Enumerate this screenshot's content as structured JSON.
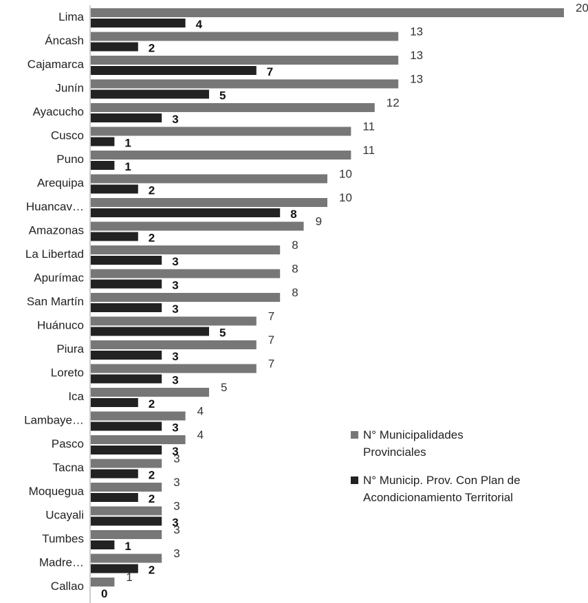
{
  "chart_data": {
    "type": "bar",
    "orientation": "horizontal",
    "categories": [
      "Lima",
      "Áncash",
      "Cajamarca",
      "Junín",
      "Ayacucho",
      "Cusco",
      "Puno",
      "Arequipa",
      "Huancav…",
      "Amazonas",
      "La Libertad",
      "Apurímac",
      "San Martín",
      "Huánuco",
      "Piura",
      "Loreto",
      "Ica",
      "Lambaye…",
      "Pasco",
      "Tacna",
      "Moquegua",
      "Ucayali",
      "Tumbes",
      "Madre…",
      "Callao"
    ],
    "series": [
      {
        "name": "N° Municipalidades Provinciales",
        "color": "#777777",
        "values": [
          20,
          13,
          13,
          13,
          12,
          11,
          11,
          10,
          10,
          9,
          8,
          8,
          8,
          7,
          7,
          7,
          5,
          4,
          4,
          3,
          3,
          3,
          3,
          3,
          1
        ]
      },
      {
        "name": "N° Municip. Prov. Con Plan de Acondicionamiento Territorial",
        "color": "#222222",
        "values": [
          4,
          2,
          7,
          5,
          3,
          1,
          1,
          2,
          8,
          2,
          3,
          3,
          3,
          5,
          3,
          3,
          2,
          3,
          3,
          2,
          2,
          3,
          1,
          2,
          0
        ]
      }
    ],
    "xlim": [
      0,
      20
    ],
    "grid": false,
    "legend_position": "right"
  },
  "legend": {
    "item1_line1": "N° Municipalidades",
    "item1_line2": "Provinciales",
    "item2_line1": "N° Municip. Prov. Con Plan de",
    "item2_line2": "Acondicionamiento Territorial"
  }
}
